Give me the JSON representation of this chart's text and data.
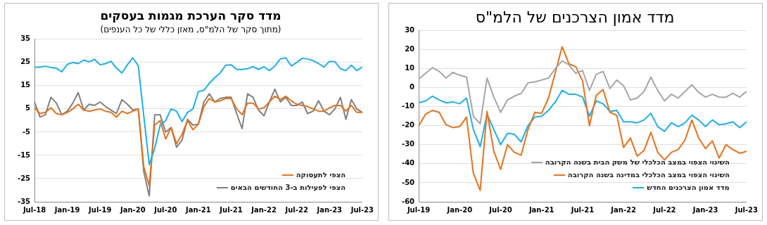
{
  "chart_data": [
    {
      "type": "line",
      "title": "מדד סקר הערכת מגמות בעסקים",
      "subtitle": "(מתוך סקר של הלמ\"ס, מאזן כללי של כל הענפים)",
      "categories": [
        "Jul-18",
        null,
        null,
        null,
        null,
        null,
        "Jan-19",
        null,
        null,
        null,
        null,
        null,
        "Jul-19",
        null,
        null,
        null,
        null,
        null,
        "Jan-20",
        null,
        null,
        null,
        null,
        null,
        "Jul-20",
        null,
        null,
        null,
        null,
        null,
        "Jan-21",
        null,
        null,
        null,
        null,
        null,
        "Jul-21",
        null,
        null,
        null,
        null,
        null,
        "Jan-22",
        null,
        null,
        null,
        null,
        null,
        "Jul-22",
        null,
        null,
        null,
        null,
        null,
        "Jan-23",
        null,
        null,
        null,
        null,
        null,
        "Jul-23"
      ],
      "series": [
        {
          "color": "#1cb0ea",
          "values": [
            23,
            23,
            23.4,
            22.8,
            22.5,
            21,
            24.2,
            25,
            24.5,
            26,
            25.3,
            26.3,
            24,
            24.5,
            25.5,
            22.5,
            20.5,
            24,
            27,
            23.5,
            2,
            -19,
            -12,
            -2,
            0,
            5,
            4,
            -0.5,
            3.5,
            5,
            12.5,
            13,
            16,
            18.5,
            20.5,
            23.8,
            24,
            22,
            22,
            22.3,
            23.2,
            22,
            23.2,
            21.5,
            23.5,
            26.5,
            27,
            23.5,
            25,
            26.8,
            26.5,
            25.8,
            24.5,
            23,
            25.5,
            25.3,
            22.3,
            21.5,
            23.8,
            21.5,
            23
          ]
        },
        {
          "name": "הצפי לתעסוקה",
          "color": "#e8711a",
          "values": [
            5.5,
            3,
            3.5,
            5.5,
            3,
            2.5,
            3.5,
            5,
            7,
            4.5,
            4,
            4.5,
            5,
            4,
            3.5,
            1.5,
            4,
            3,
            4,
            5,
            -20,
            -28,
            -2,
            0,
            -8,
            -3,
            -10,
            -6,
            0,
            -4,
            -1.5,
            6,
            9.5,
            8,
            8.5,
            9.5,
            9.5,
            5,
            2.5,
            7.5,
            7.5,
            5,
            5.5,
            8,
            10.5,
            9,
            10.5,
            8.5,
            7,
            6.5,
            6,
            5,
            4,
            4,
            5.5,
            6.5,
            6.5,
            4,
            6.5,
            3.5,
            3.5
          ]
        },
        {
          "name": "הצפי לפעילות ב-3 החודשים הבאים",
          "color": "#808080",
          "values": [
            8,
            1.5,
            2.5,
            10,
            7.5,
            2.5,
            4,
            7.5,
            12,
            4.5,
            7,
            6.5,
            8,
            6,
            4.5,
            3,
            9,
            7,
            4.5,
            5,
            -22,
            -32.5,
            2.5,
            2.5,
            -5,
            -3,
            -11.5,
            -8.5,
            0.5,
            -2,
            -1.5,
            8,
            11.5,
            8,
            9.5,
            10,
            10,
            3,
            -3.5,
            11.5,
            10,
            4.5,
            2,
            8,
            13.5,
            8,
            10,
            6.5,
            6.5,
            8,
            3,
            4,
            8.5,
            4,
            2.5,
            5,
            10,
            0.5,
            9,
            5,
            3.5
          ]
        }
      ],
      "ylim": [
        -35,
        35
      ],
      "yticks": [
        -35,
        -25,
        -15,
        -5,
        5,
        15,
        25,
        35
      ],
      "grid": "y",
      "legend": "bottom right",
      "marker": "none"
    },
    {
      "type": "line",
      "title": "מדד אמון הצרכנים של הלמ\"ס",
      "categories": [
        "Jul-19",
        null,
        null,
        null,
        null,
        null,
        "Jan-20",
        null,
        null,
        null,
        null,
        null,
        "Jul-20",
        null,
        null,
        null,
        null,
        null,
        "Jan-21",
        null,
        null,
        null,
        null,
        null,
        "Jul-21",
        null,
        null,
        null,
        null,
        null,
        "Jan-22",
        null,
        null,
        null,
        null,
        null,
        "Jul-22",
        null,
        null,
        null,
        null,
        null,
        "Jan-23",
        null,
        null,
        null,
        null,
        null,
        "Jul-23"
      ],
      "series": [
        {
          "name": "השינוי הצפוי במצב הכלכלי של משק הבית בשנה הקרובה",
          "color": "#a6a6a6",
          "values": [
            4.5,
            7.5,
            10.5,
            8.5,
            5,
            8,
            6.5,
            5.5,
            -15,
            -19,
            5,
            -5,
            -13,
            -6.5,
            -4.5,
            -3,
            2.5,
            3,
            4,
            5,
            10,
            14,
            12,
            7.5,
            9,
            -1.5,
            7,
            8.5,
            -0.5,
            4,
            1,
            -6.5,
            -5.5,
            -2,
            5.5,
            -1.5,
            -7,
            -3.5,
            -5.5,
            -2,
            1.5,
            -2.5,
            -5,
            -3.5,
            -5,
            -5,
            -3,
            -5,
            -2
          ]
        },
        {
          "name": "השינוי הצפוי במצב הכלכלי במדינה בשנה הקרובה",
          "color": "#e8711a",
          "values": [
            -20,
            -14,
            -12,
            -13,
            -19.5,
            -21,
            -20.5,
            -15.5,
            -45,
            -54,
            -12.5,
            -33.5,
            -43,
            -30,
            -34,
            -35.5,
            -22,
            -13,
            -13.5,
            -5.5,
            8,
            21.5,
            12.5,
            11,
            3.5,
            -20,
            -4,
            -1,
            -13,
            -14.5,
            -31.5,
            -26.5,
            -36,
            -33,
            -23.5,
            -34,
            -38,
            -34,
            -32.5,
            -27.5,
            -17,
            -26.5,
            -32,
            -28,
            -37,
            -30,
            -32.5,
            -34.5,
            -33.5
          ]
        },
        {
          "name": "מדד אמון הצרכנים החדש",
          "color": "#1cb0ea",
          "values": [
            -8,
            -7,
            -4.5,
            -6.5,
            -8,
            -7.5,
            -8.5,
            -5.5,
            -22,
            -31,
            -14,
            -22,
            -30,
            -24,
            -24.5,
            -28.5,
            -20,
            -15.5,
            -15,
            -12,
            -7.5,
            -1.5,
            -3.5,
            -3.5,
            -5,
            -15,
            -7,
            -8.5,
            -12.5,
            -12,
            -18,
            -18,
            -18.5,
            -17,
            -13.5,
            -20.5,
            -23,
            -18.5,
            -20.5,
            -18.5,
            -14.5,
            -17,
            -20.5,
            -17,
            -19.5,
            -19,
            -18,
            -21,
            -18
          ]
        }
      ],
      "ylim": [
        -60,
        30
      ],
      "yticks": [
        -60,
        -50,
        -40,
        -30,
        -20,
        -10,
        0,
        10,
        20,
        30
      ],
      "grid": "y",
      "legend": "bottom right",
      "marker": "none"
    }
  ]
}
